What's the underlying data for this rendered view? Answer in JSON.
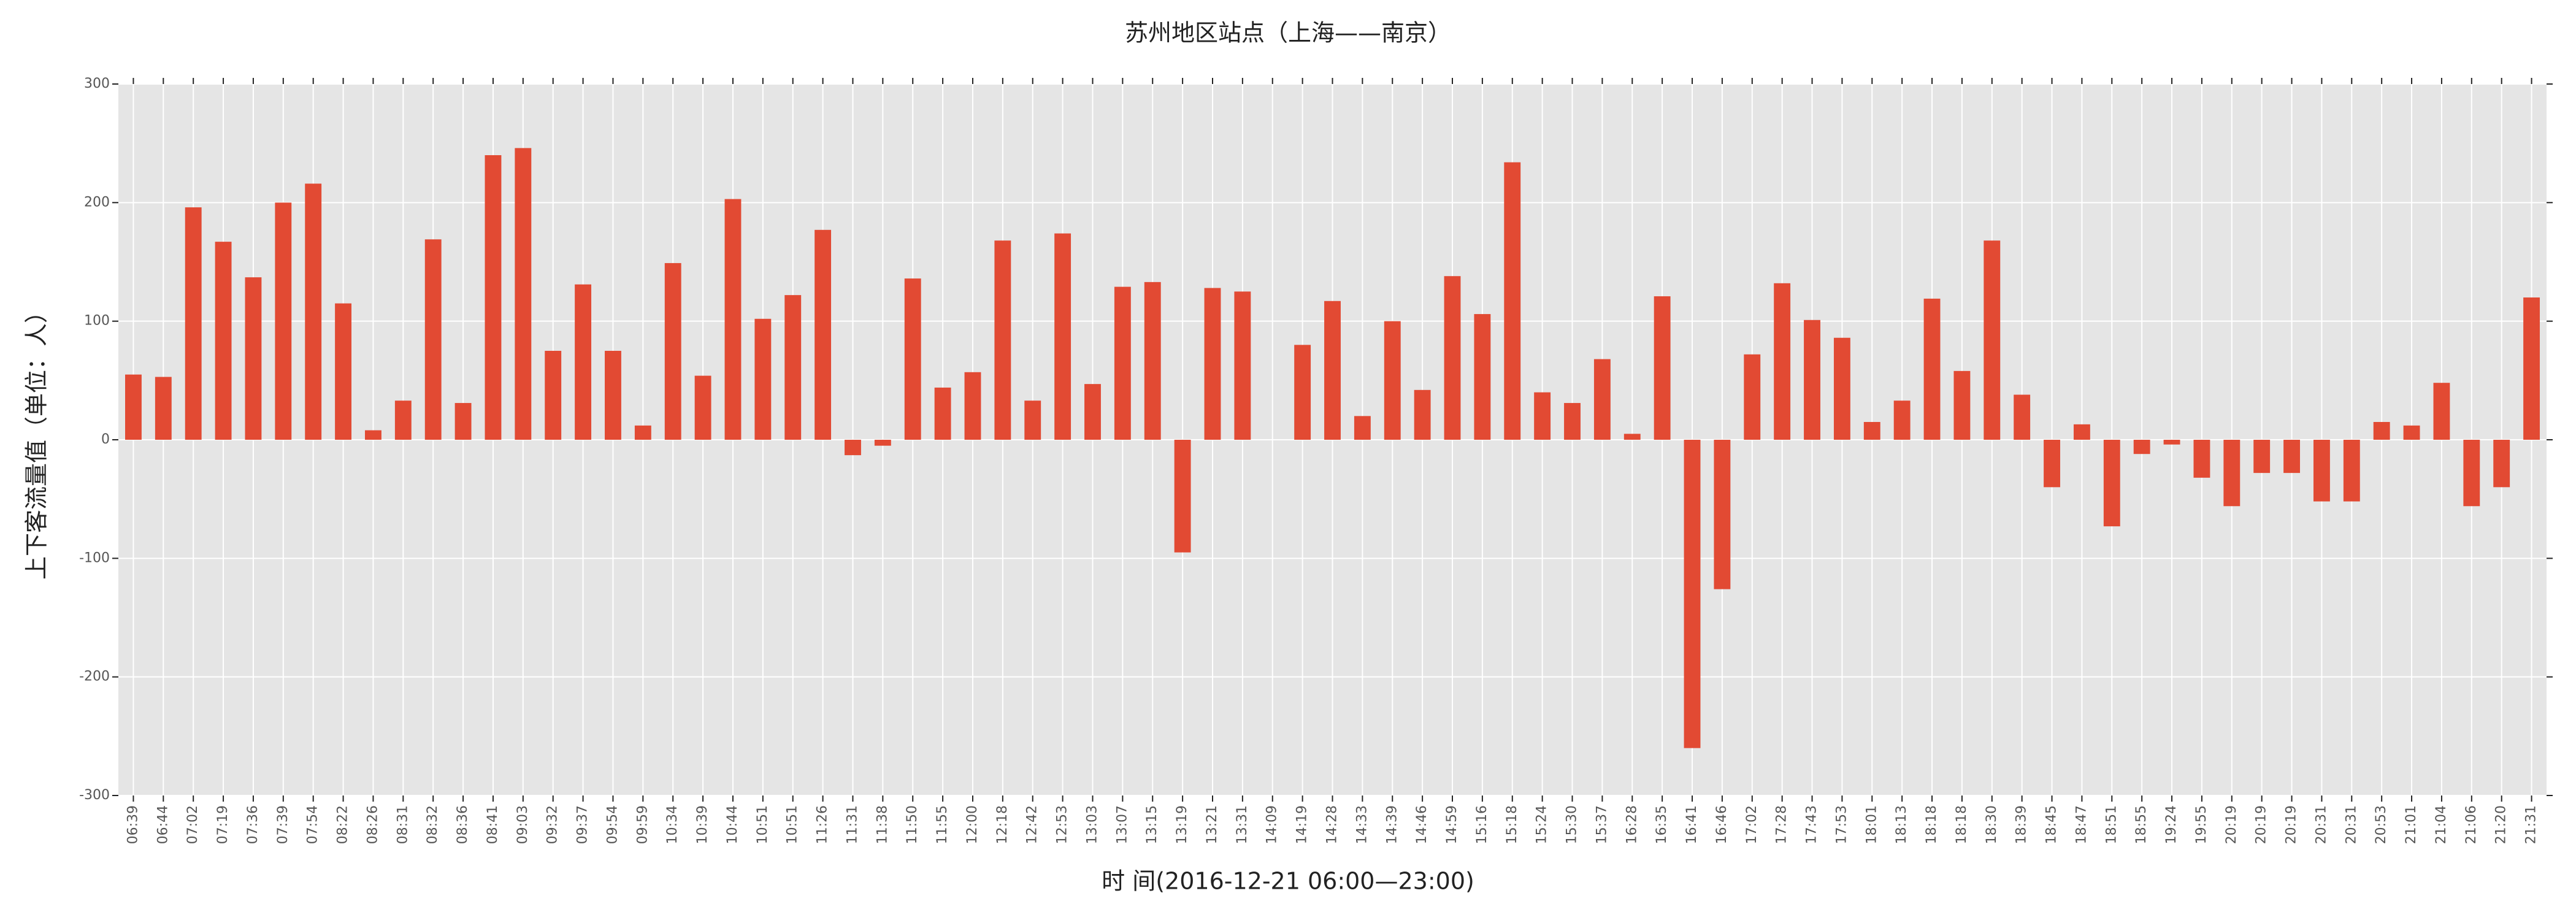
{
  "chart_data": {
    "type": "bar",
    "title": "苏州地区站点（上海——南京）",
    "x_label": "时 间(2016-12-21 06:00—23:00)",
    "y_label": "上下客流量值（单位：人）",
    "categories": [
      "06:39",
      "06:44",
      "07:02",
      "07:19",
      "07:36",
      "07:39",
      "07:54",
      "08:22",
      "08:26",
      "08:31",
      "08:32",
      "08:36",
      "08:41",
      "09:03",
      "09:32",
      "09:37",
      "09:54",
      "09:59",
      "10:34",
      "10:39",
      "10:44",
      "10:51",
      "10:51",
      "11:26",
      "11:31",
      "11:38",
      "11:50",
      "11:55",
      "12:00",
      "12:18",
      "12:42",
      "12:53",
      "13:03",
      "13:07",
      "13:15",
      "13:19",
      "13:21",
      "13:31",
      "14:09",
      "14:19",
      "14:28",
      "14:33",
      "14:39",
      "14:46",
      "14:59",
      "15:16",
      "15:18",
      "15:24",
      "15:30",
      "15:37",
      "16:28",
      "16:35",
      "16:41",
      "16:46",
      "17:02",
      "17:28",
      "17:43",
      "17:53",
      "18:01",
      "18:13",
      "18:18",
      "18:18",
      "18:30",
      "18:39",
      "18:45",
      "18:47",
      "18:51",
      "18:55",
      "19:24",
      "19:55",
      "20:19",
      "20:19",
      "20:19",
      "20:31",
      "20:31",
      "20:53",
      "21:01",
      "21:04",
      "21:06",
      "21:20",
      "21:31"
    ],
    "values": [
      55,
      53,
      196,
      167,
      137,
      200,
      216,
      115,
      8,
      33,
      169,
      31,
      240,
      246,
      75,
      131,
      75,
      12,
      149,
      54,
      203,
      102,
      122,
      177,
      -13,
      -5,
      136,
      44,
      57,
      168,
      33,
      174,
      47,
      129,
      133,
      -95,
      128,
      125,
      0,
      80,
      117,
      20,
      100,
      42,
      138,
      106,
      234,
      40,
      31,
      68,
      5,
      121,
      -260,
      -126,
      72,
      132,
      101,
      86,
      15,
      33,
      119,
      58,
      168,
      38,
      -40,
      13,
      -73,
      -12,
      -4,
      -32,
      -56,
      -28,
      -28,
      -52,
      -52,
      15,
      12,
      48,
      -56,
      -40,
      120
    ],
    "color": "#e24a33",
    "ylim": [
      -300,
      300
    ],
    "yticks": [
      -300,
      -200,
      -100,
      0,
      100,
      200,
      300
    ],
    "grid": true
  }
}
